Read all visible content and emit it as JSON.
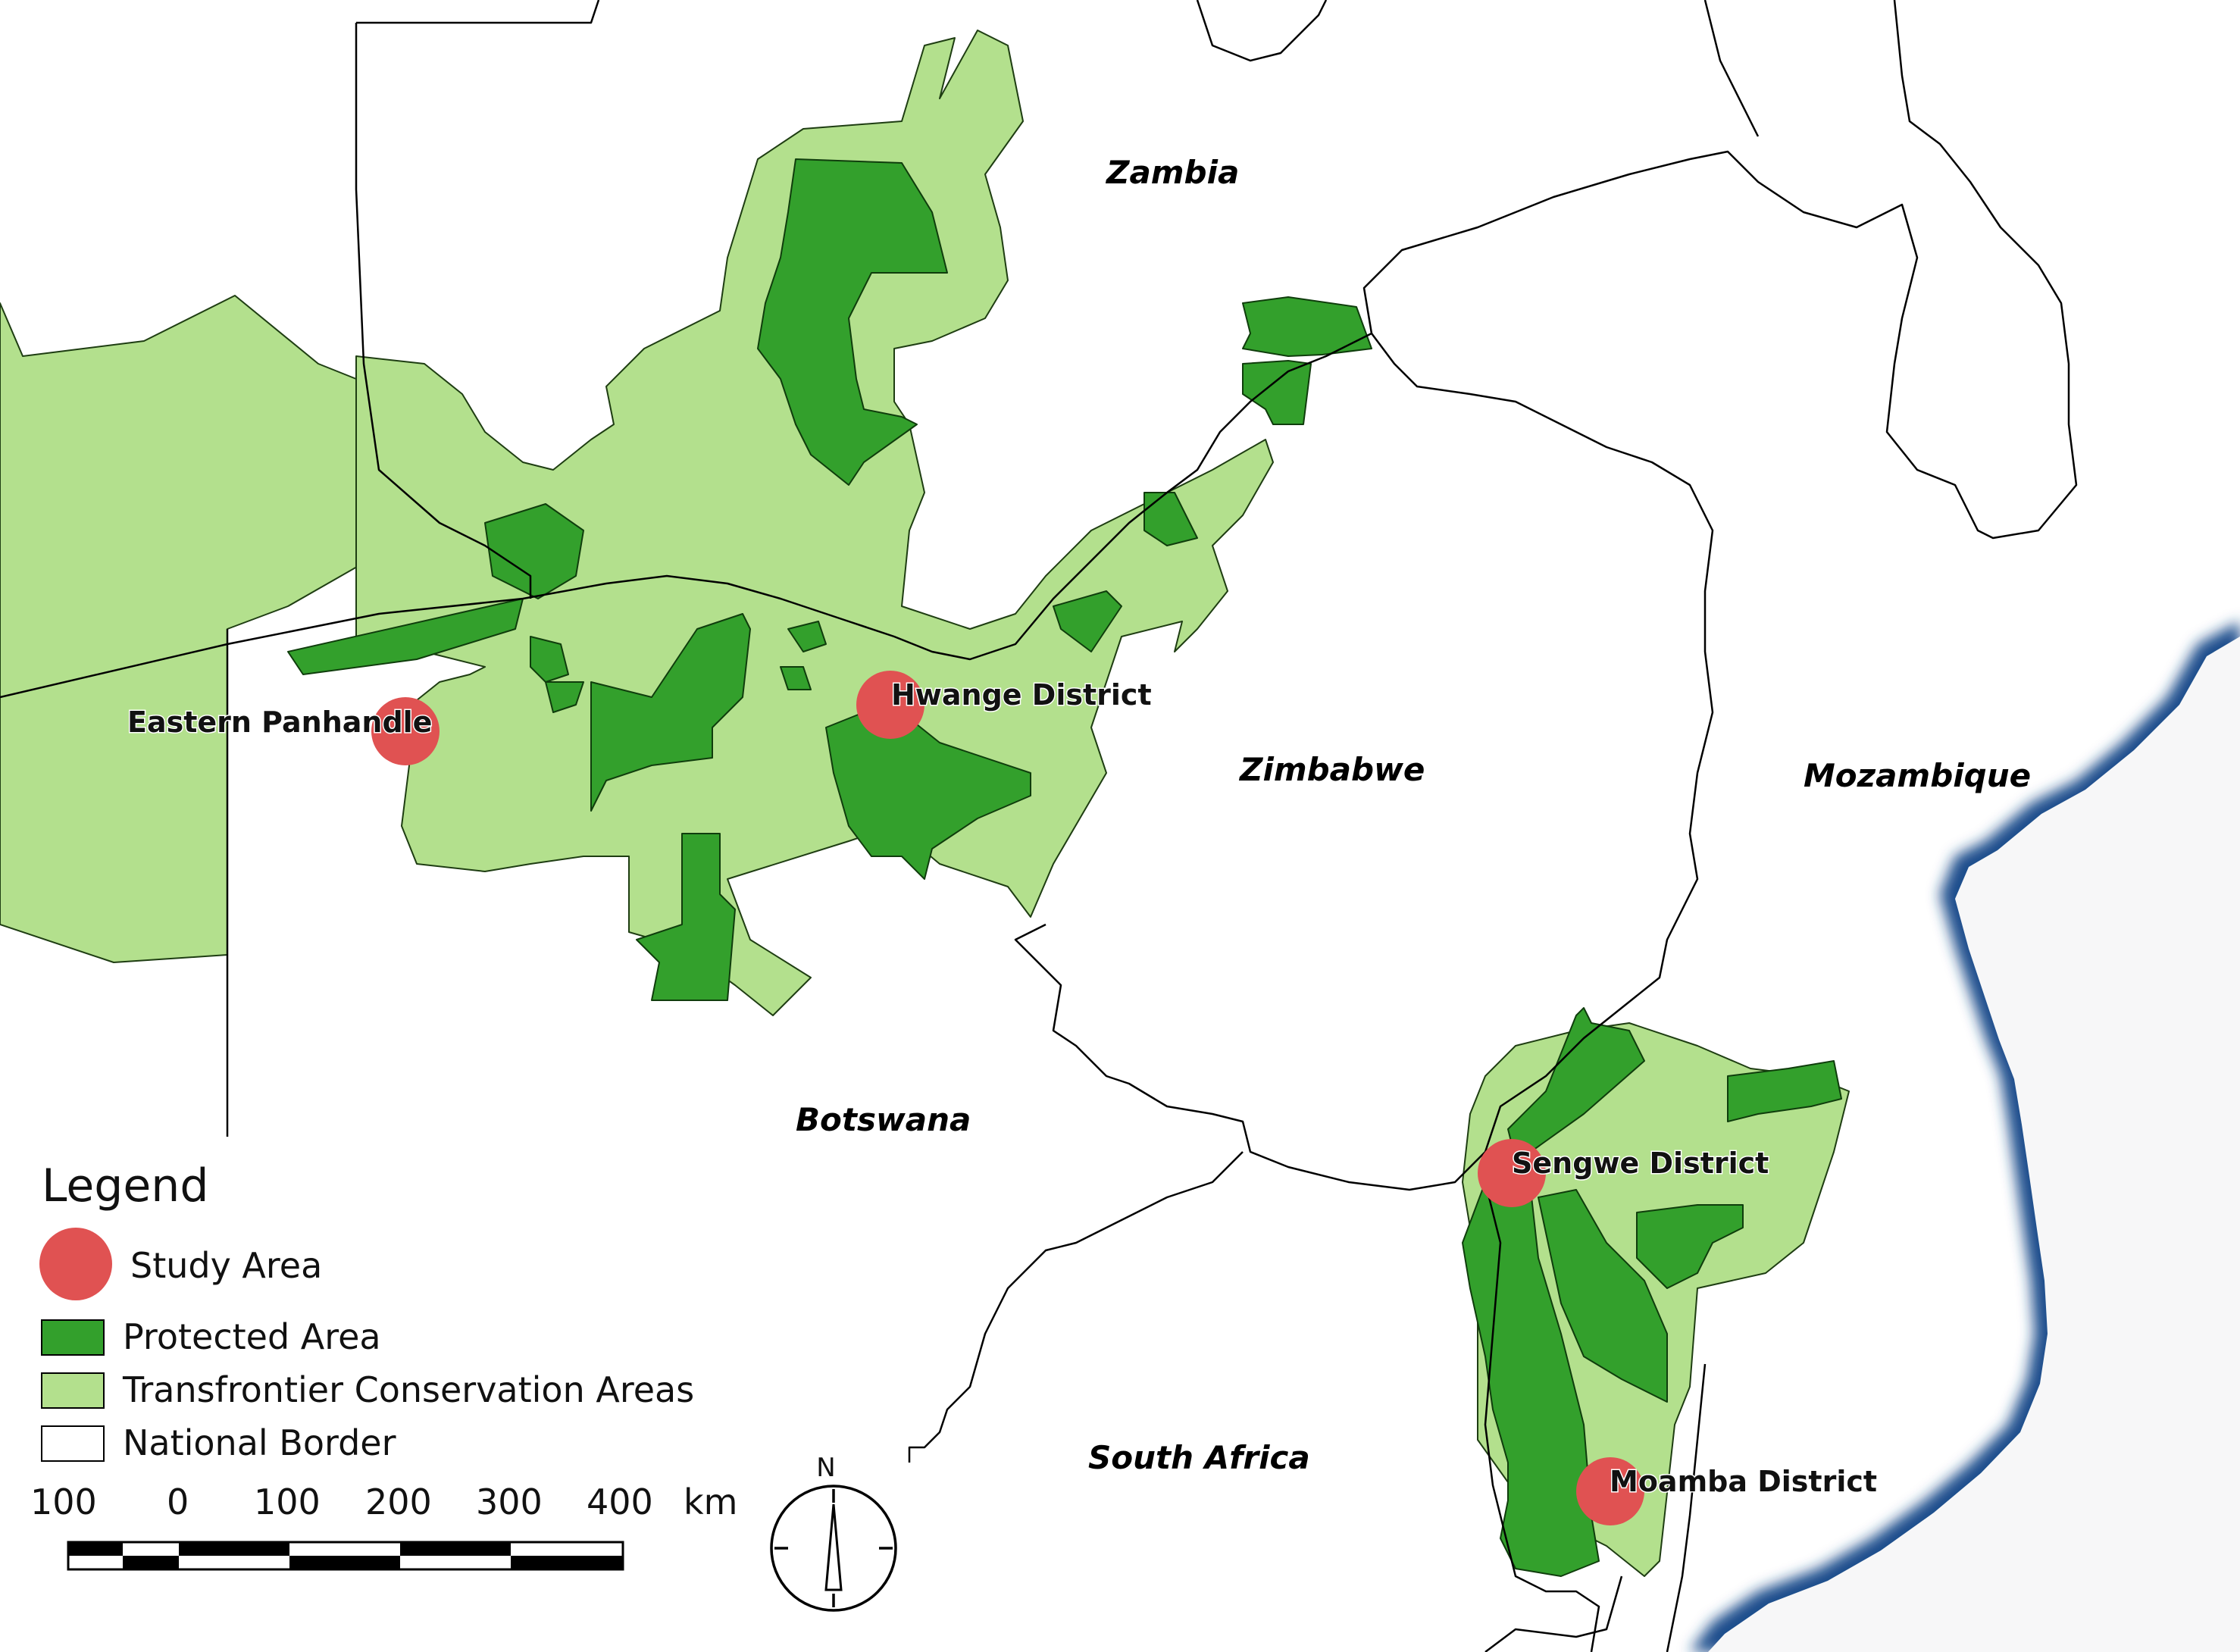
{
  "countries": {
    "zambia": "Zambia",
    "zimbabwe": "Zimbabwe",
    "mozambique": "Mozambique",
    "botswana": "Botswana",
    "south_africa": "South Africa"
  },
  "study_areas": {
    "eastern_panhandle": "Eastern Panhandle",
    "hwange": "Hwange District",
    "sengwe": "Sengwe District",
    "moamba": "Moamba District"
  },
  "legend": {
    "title": "Legend",
    "study_area": "Study Area",
    "protected_area": "Protected Area",
    "tfca": "Transfrontier Conservation Areas",
    "national_border": "National Border"
  },
  "scale": {
    "labels": [
      "100",
      "0",
      "100",
      "200",
      "300",
      "400"
    ],
    "unit": "km"
  },
  "north_arrow": {
    "label": "N"
  },
  "colors": {
    "study_area": "#e05252",
    "protected_area": "#33a02c",
    "tfca": "#b3e08d",
    "ocean": "#1f4e8c",
    "border": "#000000"
  }
}
